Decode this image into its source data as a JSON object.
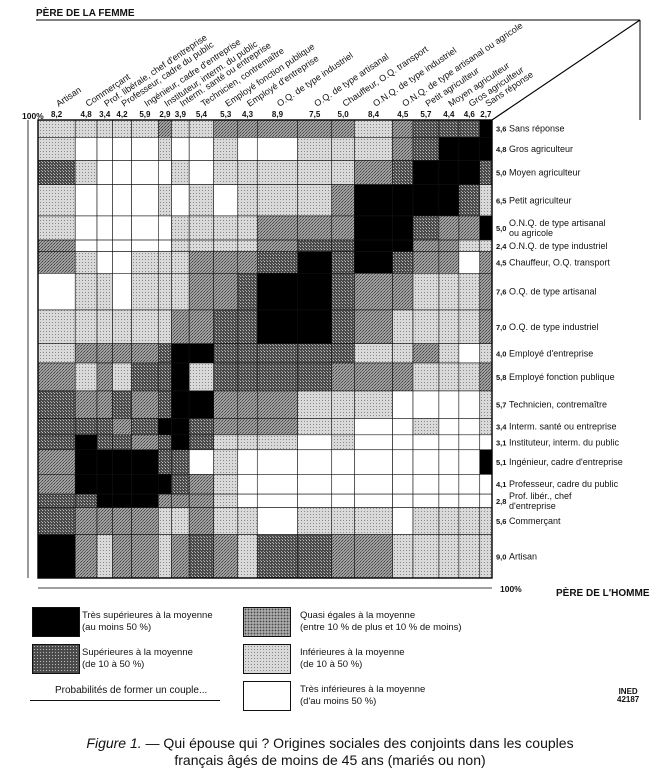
{
  "axis_titles": {
    "wife": "PÈRE DE LA FEMME",
    "husband": "PÈRE DE L'HOMME",
    "percent_top": "100%",
    "percent_bottom": "100%"
  },
  "caption": {
    "figure_no": "Figure 1.",
    "text_line1": "— Qui épouse qui ? Origines sociales des conjoints dans les couples",
    "text_line2": "français âgés de moins de 45 ans (mariés ou non)"
  },
  "legend": {
    "items": [
      {
        "level": 4,
        "line1": "Très supérieures à la moyenne",
        "line2": "(au moins 50 %)"
      },
      {
        "level": 3,
        "line1": "Supérieures à la moyenne",
        "line2": "(de 10 à 50 %)"
      },
      {
        "level": 2,
        "line1": "Quasi égales à la moyenne",
        "line2": "(entre 10 % de plus et 10 % de moins)"
      },
      {
        "level": 1,
        "line1": "Inférieures à la moyenne",
        "line2": "(de 10 à 50 %)"
      },
      {
        "level": 0,
        "line1": "Très inférieures à la moyenne",
        "line2": "(d'au moins 50 %)"
      }
    ],
    "probability_label": "Probabilités de former un couple...",
    "source_mark": "INED",
    "source_number": "42187"
  },
  "colors": {
    "level4": "#000000",
    "level3": "#5a5a5a",
    "level2": "#8c8c8c",
    "level1": "#cdcdcd",
    "level0": "#ffffff"
  },
  "chart_data": {
    "type": "heatmap",
    "title": "",
    "x_axis_label": "PÈRE DE LA FEMME",
    "y_axis_label": "PÈRE DE L'HOMME",
    "categories": [
      "Artisan",
      "Commerçant",
      "Prof. libérale, chef d'entreprise",
      "Professeur, cadre du public",
      "Ingénieur, cadre d'entreprise",
      "Instituteur, interm. du public",
      "Interm. santé ou entreprise",
      "Technicien, contremaître",
      "Employé fonction publique",
      "Employé d'entreprise",
      "O.Q. de type industriel",
      "O.Q. de type artisanal",
      "Chauffeur, O.Q. transport",
      "O.N.Q. de type industriel",
      "O.N.Q. de type artisanal ou agricole",
      "Petit agriculteur",
      "Moyen agriculteur",
      "Gros agriculteur",
      "Sans réponse"
    ],
    "column_percents": [
      "8,2",
      "4,8",
      "3,4",
      "4,2",
      "5,9",
      "2,9",
      "3,9",
      "5,4",
      "5,3",
      "4,3",
      "8,9",
      "7,5",
      "5,0",
      "8,4",
      "4,5",
      "5,7",
      "4,4",
      "4,6",
      "2,7"
    ],
    "rows": [
      {
        "label": "Sans réponse",
        "percent": "3,6",
        "levels": [
          1,
          1,
          1,
          1,
          1,
          2,
          1,
          1,
          2,
          2,
          2,
          2,
          2,
          1,
          2,
          3,
          3,
          3,
          4
        ]
      },
      {
        "label": "Gros agriculteur",
        "percent": "4,8",
        "levels": [
          1,
          0,
          0,
          0,
          0,
          1,
          0,
          0,
          1,
          0,
          0,
          1,
          1,
          1,
          2,
          3,
          4,
          4,
          4
        ]
      },
      {
        "label": "Moyen agriculteur",
        "percent": "5,0",
        "levels": [
          3,
          1,
          0,
          0,
          0,
          0,
          1,
          0,
          1,
          1,
          1,
          1,
          1,
          2,
          3,
          4,
          4,
          4,
          3
        ]
      },
      {
        "label": "Petit agriculteur",
        "percent": "6,5",
        "levels": [
          1,
          0,
          0,
          0,
          0,
          1,
          0,
          1,
          0,
          1,
          1,
          1,
          2,
          4,
          4,
          4,
          4,
          3,
          1
        ]
      },
      {
        "label": "O.N.Q. de type artisanal ou agricole",
        "percent": "5,0",
        "levels": [
          1,
          0,
          0,
          0,
          0,
          0,
          1,
          1,
          1,
          1,
          2,
          2,
          2,
          4,
          4,
          3,
          2,
          2,
          4
        ]
      },
      {
        "label": "O.N.Q. de type industriel",
        "percent": "2,4",
        "levels": [
          2,
          0,
          0,
          0,
          0,
          0,
          1,
          1,
          1,
          1,
          2,
          3,
          3,
          4,
          4,
          2,
          2,
          1,
          1
        ]
      },
      {
        "label": "Chauffeur, O.Q. transport",
        "percent": "4,5",
        "levels": [
          2,
          1,
          0,
          0,
          1,
          1,
          1,
          2,
          2,
          2,
          3,
          4,
          3,
          4,
          3,
          2,
          2,
          0,
          2
        ]
      },
      {
        "label": "O.Q. de type artisanal",
        "percent": "7,6",
        "levels": [
          0,
          1,
          1,
          0,
          1,
          1,
          1,
          2,
          2,
          3,
          4,
          4,
          3,
          2,
          2,
          1,
          1,
          1,
          2
        ]
      },
      {
        "label": "O.Q. de type industriel",
        "percent": "7,0",
        "levels": [
          1,
          1,
          1,
          1,
          1,
          1,
          2,
          2,
          3,
          3,
          4,
          4,
          3,
          2,
          1,
          1,
          1,
          1,
          2
        ]
      },
      {
        "label": "Employé d'entreprise",
        "percent": "4,0",
        "levels": [
          1,
          2,
          2,
          2,
          2,
          3,
          4,
          4,
          3,
          3,
          3,
          3,
          3,
          1,
          1,
          2,
          1,
          0,
          1
        ]
      },
      {
        "label": "Employé fonction publique",
        "percent": "5,8",
        "levels": [
          2,
          1,
          2,
          1,
          3,
          3,
          4,
          1,
          3,
          3,
          3,
          3,
          2,
          2,
          2,
          1,
          1,
          1,
          2
        ]
      },
      {
        "label": "Technicien, contremaître",
        "percent": "5,7",
        "levels": [
          3,
          2,
          2,
          3,
          2,
          3,
          4,
          4,
          2,
          2,
          2,
          1,
          1,
          1,
          0,
          0,
          0,
          0,
          1
        ]
      },
      {
        "label": "Interm. santé ou entreprise",
        "percent": "3,4",
        "levels": [
          3,
          3,
          3,
          2,
          3,
          4,
          4,
          3,
          2,
          2,
          2,
          1,
          1,
          0,
          0,
          1,
          0,
          0,
          1
        ]
      },
      {
        "label": "Instituteur, interm. du public",
        "percent": "3,1",
        "levels": [
          3,
          4,
          3,
          3,
          2,
          3,
          4,
          3,
          1,
          1,
          1,
          0,
          1,
          0,
          0,
          0,
          0,
          0,
          0
        ]
      },
      {
        "label": "Ingénieur, cadre d'entreprise",
        "percent": "5,1",
        "levels": [
          2,
          4,
          4,
          4,
          4,
          3,
          3,
          0,
          1,
          0,
          0,
          0,
          0,
          0,
          0,
          0,
          0,
          0,
          4
        ]
      },
      {
        "label": "Professeur, cadre du public",
        "percent": "4,1",
        "levels": [
          2,
          4,
          4,
          4,
          4,
          4,
          3,
          2,
          1,
          0,
          0,
          0,
          0,
          0,
          0,
          0,
          0,
          0,
          0
        ]
      },
      {
        "label": "Prof. libér., chef d'entreprise",
        "percent": "2,8",
        "levels": [
          3,
          3,
          4,
          4,
          4,
          2,
          2,
          2,
          1,
          0,
          0,
          0,
          0,
          0,
          0,
          0,
          0,
          0,
          0
        ]
      },
      {
        "label": "Commerçant",
        "percent": "5,6",
        "levels": [
          3,
          2,
          2,
          2,
          2,
          1,
          1,
          2,
          1,
          1,
          0,
          1,
          1,
          1,
          0,
          1,
          1,
          1,
          1
        ]
      },
      {
        "label": "Artisan",
        "percent": "9,0",
        "levels": [
          4,
          2,
          1,
          2,
          2,
          1,
          2,
          3,
          2,
          1,
          3,
          3,
          2,
          2,
          1,
          1,
          1,
          1,
          1
        ]
      }
    ]
  }
}
